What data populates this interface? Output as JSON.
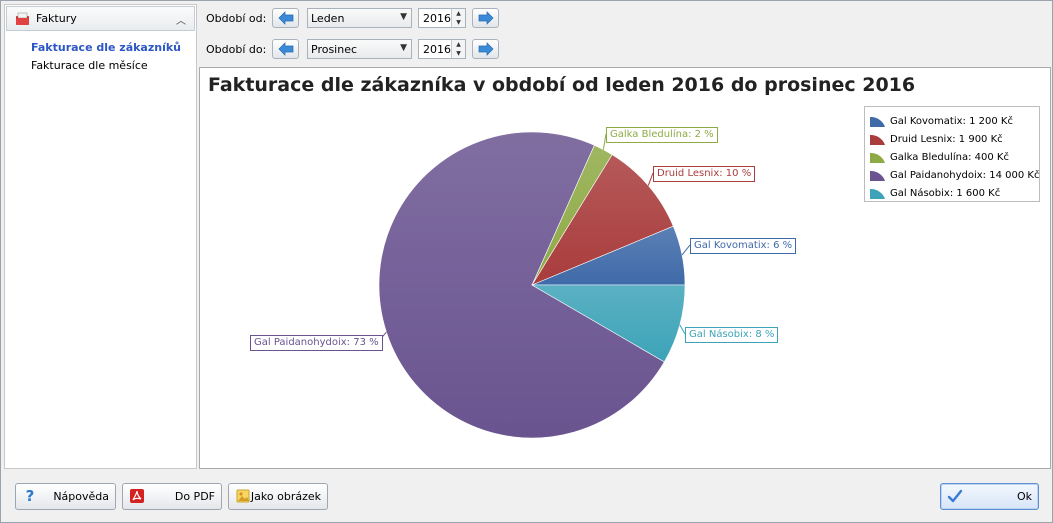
{
  "sidebar": {
    "header": "Faktury",
    "items": [
      {
        "label": "Fakturace dle zákazníků",
        "active": true
      },
      {
        "label": "Fakturace dle měsíce",
        "active": false
      }
    ]
  },
  "filters": {
    "from": {
      "label": "Období od:",
      "month": "Leden",
      "year": "2016"
    },
    "to": {
      "label": "Období do:",
      "month": "Prosinec",
      "year": "2016"
    }
  },
  "chart_data": {
    "type": "pie",
    "title": "Fakturace dle zákazníka v období od leden 2016 do prosinec 2016",
    "slices": [
      {
        "name": "Gal Kovomatix",
        "value": 1200,
        "percent": 6,
        "color": "#3f6aa8",
        "legend": "Gal Kovomatix: 1 200 Kč",
        "label": "Gal Kovomatix: 6 %"
      },
      {
        "name": "Druid Lesnix",
        "value": 1900,
        "percent": 10,
        "color": "#a93c3c",
        "legend": "Druid Lesnix: 1 900 Kč",
        "label": "Druid Lesnix: 10 %"
      },
      {
        "name": "Galka Bledulína",
        "value": 400,
        "percent": 2,
        "color": "#8eaa45",
        "legend": "Galka Bledulína: 400 Kč",
        "label": "Galka Bledulína: 2 %"
      },
      {
        "name": "Gal Paidanohydoix",
        "value": 14000,
        "percent": 73,
        "color": "#6a5490",
        "legend": "Gal Paidanohydoix: 14 000 Kč",
        "label": "Gal Paidanohydoix: 73 %"
      },
      {
        "name": "Gal Násobix",
        "value": 1600,
        "percent": 8,
        "color": "#3da3b8",
        "legend": "Gal Násobix: 1 600 Kč",
        "label": "Gal Násobix: 8 %"
      }
    ],
    "legend_position": "top-right"
  },
  "buttons": {
    "help": "Nápověda",
    "pdf": "Do PDF",
    "image": "Jako obrázek",
    "ok": "Ok"
  }
}
